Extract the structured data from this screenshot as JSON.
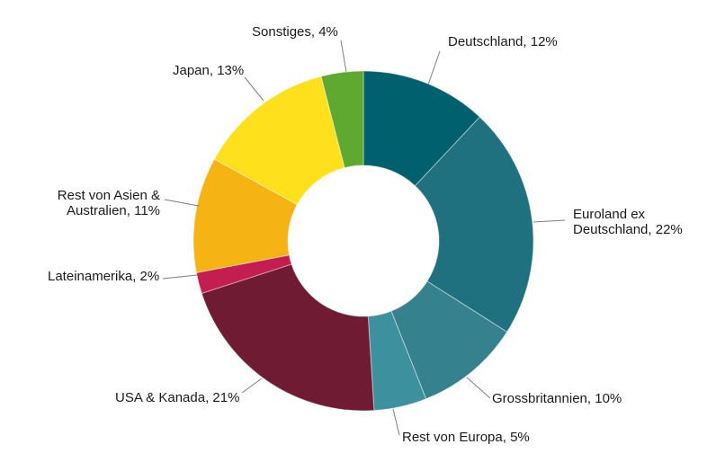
{
  "chart_data": {
    "type": "pie",
    "subtype": "donut",
    "title": "",
    "legend_position": "none",
    "background": "#ffffff",
    "text_color": "#1a1a1a",
    "leader_line_color": "#7f7f7f",
    "hole_ratio": 0.445,
    "start_angle_deg": 0,
    "direction": "clockwise",
    "unit": "%",
    "categories": [
      "Deutschland",
      "Euroland ex Deutschland",
      "Grossbritannien",
      "Rest von Europa",
      "USA & Kanada",
      "Lateinamerika",
      "Rest von Asien & Australien",
      "Japan",
      "Sonstiges"
    ],
    "values": [
      12,
      22,
      10,
      5,
      21,
      2,
      11,
      13,
      4
    ],
    "colors": [
      "#00606D",
      "#1F717F",
      "#35818D",
      "#3D909D",
      "#6E1B33",
      "#C41D52",
      "#F5B314",
      "#FFE01C",
      "#5FA930"
    ],
    "display_labels": [
      "Deutschland, 12%",
      "Euroland ex Deutschland, 22%",
      "Grossbritannien, 10%",
      "Rest von Europa, 5%",
      "USA & Kanada, 21%",
      "Lateinamerika, 2%",
      "Rest von Asien & Australien, 11%",
      "Japan, 13%",
      "Sonstiges, 4%"
    ]
  }
}
